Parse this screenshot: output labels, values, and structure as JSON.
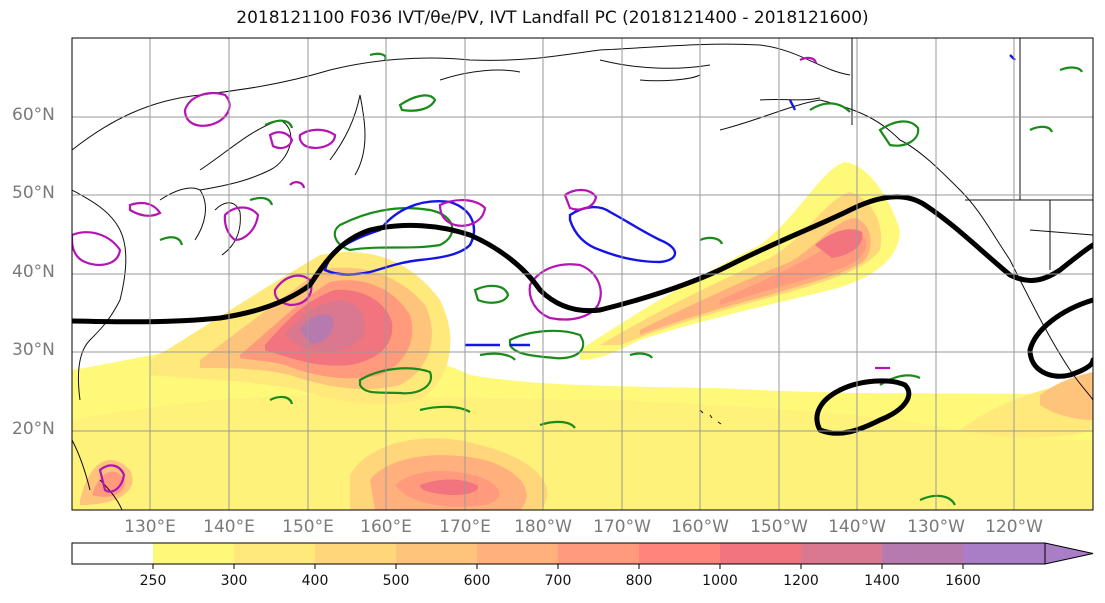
{
  "title": "2018121100 F036 IVT/θe/PV, IVT Landfall PC (2018121400 - 2018121600)",
  "map": {
    "lat_labels": [
      "60°N",
      "50°N",
      "40°N",
      "30°N",
      "20°N"
    ],
    "lon_labels": [
      "130°E",
      "140°E",
      "150°E",
      "160°E",
      "170°E",
      "180°W",
      "170°W",
      "160°W",
      "150°W",
      "140°W",
      "130°W",
      "120°W"
    ],
    "lat_range": [
      10,
      70
    ],
    "lon_range": [
      120,
      250
    ],
    "grid": true,
    "fields": [
      "IVT filled contours",
      "θe contour (black)",
      "PV contours (magenta/blue/green)",
      "coastlines and borders"
    ]
  },
  "colorbar": {
    "tick_labels": [
      "250",
      "300",
      "400",
      "500",
      "600",
      "700",
      "800",
      "1000",
      "1200",
      "1400",
      "1600"
    ],
    "levels": [
      0,
      250,
      300,
      400,
      500,
      600,
      700,
      800,
      1000,
      1200,
      1400,
      1600
    ],
    "colors": [
      "#ffffff",
      "#fff97a",
      "#ffe97a",
      "#ffd67a",
      "#ffc47c",
      "#ffb07c",
      "#ff9a7c",
      "#ff857c",
      "#f1747e",
      "#d9788f",
      "#b77aae",
      "#a97ec6"
    ],
    "extend": "max"
  }
}
